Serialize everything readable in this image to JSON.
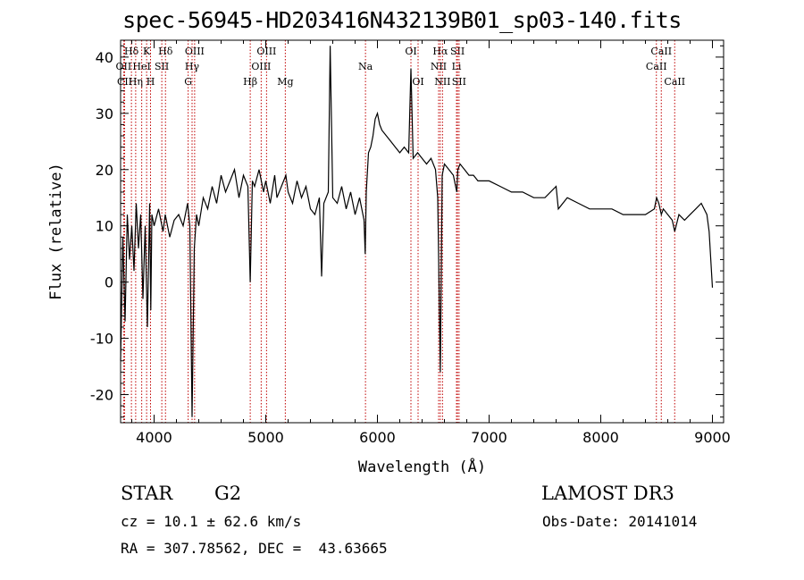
{
  "chart_data": {
    "type": "line",
    "title": "spec-56945-HD203416N432139B01_sp03-140.fits",
    "xlabel": "Wavelength (Å)",
    "ylabel": "Flux (relative)",
    "xlim": [
      3700,
      9100
    ],
    "ylim": [
      -25,
      43
    ],
    "xticks": [
      4000,
      5000,
      6000,
      7000,
      8000,
      9000
    ],
    "yticks": [
      -20,
      -10,
      0,
      10,
      20,
      30,
      40
    ],
    "series": [
      {
        "name": "spectrum",
        "x": [
          3700,
          3720,
          3740,
          3760,
          3780,
          3800,
          3820,
          3840,
          3860,
          3880,
          3900,
          3920,
          3940,
          3960,
          3970,
          3980,
          4000,
          4040,
          4080,
          4100,
          4140,
          4180,
          4220,
          4260,
          4300,
          4320,
          4340,
          4360,
          4380,
          4400,
          4440,
          4480,
          4520,
          4560,
          4600,
          4640,
          4680,
          4720,
          4760,
          4800,
          4840,
          4861,
          4880,
          4900,
          4940,
          4980,
          5000,
          5040,
          5080,
          5100,
          5140,
          5180,
          5200,
          5240,
          5280,
          5320,
          5360,
          5400,
          5440,
          5480,
          5500,
          5520,
          5560,
          5577,
          5600,
          5640,
          5680,
          5720,
          5760,
          5800,
          5840,
          5880,
          5890,
          5900,
          5920,
          5940,
          5960,
          5980,
          6000,
          6020,
          6040,
          6080,
          6120,
          6160,
          6200,
          6240,
          6280,
          6300,
          6320,
          6360,
          6400,
          6440,
          6480,
          6520,
          6540,
          6563,
          6580,
          6600,
          6640,
          6680,
          6710,
          6720,
          6740,
          6780,
          6820,
          6860,
          6900,
          6950,
          7000,
          7100,
          7200,
          7300,
          7400,
          7500,
          7600,
          7620,
          7700,
          7800,
          7900,
          8000,
          8100,
          8200,
          8300,
          8400,
          8480,
          8500,
          8520,
          8542,
          8560,
          8600,
          8640,
          8662,
          8700,
          8750,
          8800,
          8850,
          8900,
          8950,
          8970,
          9000
        ],
        "values": [
          -14,
          8,
          -7,
          12,
          4,
          10,
          2,
          14,
          6,
          12,
          -3,
          10,
          -8,
          14,
          -5,
          12,
          10,
          13,
          9,
          12,
          8,
          11,
          12,
          10,
          14,
          10,
          -24,
          6,
          12,
          10,
          15,
          13,
          17,
          14,
          19,
          16,
          18,
          20,
          15,
          19,
          17,
          0,
          18,
          17,
          20,
          16,
          18,
          14,
          19,
          15,
          17,
          19,
          16,
          14,
          18,
          15,
          17,
          13,
          12,
          15,
          1,
          14,
          16,
          42,
          15,
          14,
          17,
          13,
          16,
          12,
          15,
          11,
          5,
          16,
          23,
          24,
          26,
          29,
          30,
          28,
          27,
          26,
          25,
          24,
          23,
          24,
          23,
          38,
          22,
          23,
          22,
          21,
          22,
          20,
          15,
          -16,
          19,
          21,
          20,
          19,
          16,
          20,
          21,
          20,
          19,
          19,
          18,
          18,
          18,
          17,
          16,
          16,
          15,
          15,
          17,
          13,
          15,
          14,
          13,
          13,
          13,
          12,
          12,
          12,
          13,
          15,
          14,
          12,
          13,
          12,
          11,
          9,
          12,
          11,
          12,
          13,
          14,
          12,
          9,
          -1
        ]
      }
    ],
    "lines": [
      {
        "label": "Hδ",
        "x": 3797,
        "row": 1
      },
      {
        "label": "OII",
        "x": 3727,
        "row": 2
      },
      {
        "label": "CII",
        "x": 3736,
        "row": 3
      },
      {
        "label": "HeI",
        "x": 3889,
        "row": 2
      },
      {
        "label": "Hη",
        "x": 3835,
        "row": 3
      },
      {
        "label": "K",
        "x": 3933,
        "row": 1
      },
      {
        "label": "H",
        "x": 3968,
        "row": 3
      },
      {
        "label": "SII",
        "x": 4069,
        "row": 2
      },
      {
        "label": "Hδ",
        "x": 4102,
        "row": 1
      },
      {
        "label": "OIII",
        "x": 4363,
        "row": 1
      },
      {
        "label": "Hγ",
        "x": 4340,
        "row": 2
      },
      {
        "label": "G",
        "x": 4305,
        "row": 3
      },
      {
        "label": "OIII",
        "x": 5007,
        "row": 1
      },
      {
        "label": "OIII",
        "x": 4959,
        "row": 2
      },
      {
        "label": "Hβ",
        "x": 4861,
        "row": 3
      },
      {
        "label": "Mg",
        "x": 5175,
        "row": 3
      },
      {
        "label": "Na",
        "x": 5893,
        "row": 2
      },
      {
        "label": "OI",
        "x": 6300,
        "row": 1
      },
      {
        "label": "OI",
        "x": 6364,
        "row": 3
      },
      {
        "label": "Hα",
        "x": 6563,
        "row": 1
      },
      {
        "label": "NII",
        "x": 6548,
        "row": 2
      },
      {
        "label": "NII",
        "x": 6583,
        "row": 3
      },
      {
        "label": "SII",
        "x": 6717,
        "row": 1
      },
      {
        "label": "Li",
        "x": 6708,
        "row": 2
      },
      {
        "label": "SII",
        "x": 6731,
        "row": 3
      },
      {
        "label": "CaII",
        "x": 8542,
        "row": 1
      },
      {
        "label": "CaII",
        "x": 8498,
        "row": 2
      },
      {
        "label": "CaII",
        "x": 8662,
        "row": 3
      }
    ]
  },
  "info": {
    "class": "STAR",
    "subclass": "G2",
    "survey": "LAMOST DR3",
    "cz": "cz = 10.1 ± 62.6 km/s",
    "obs_date": "Obs-Date: 20141014",
    "radec": "RA = 307.78562, DEC =  43.63665"
  }
}
